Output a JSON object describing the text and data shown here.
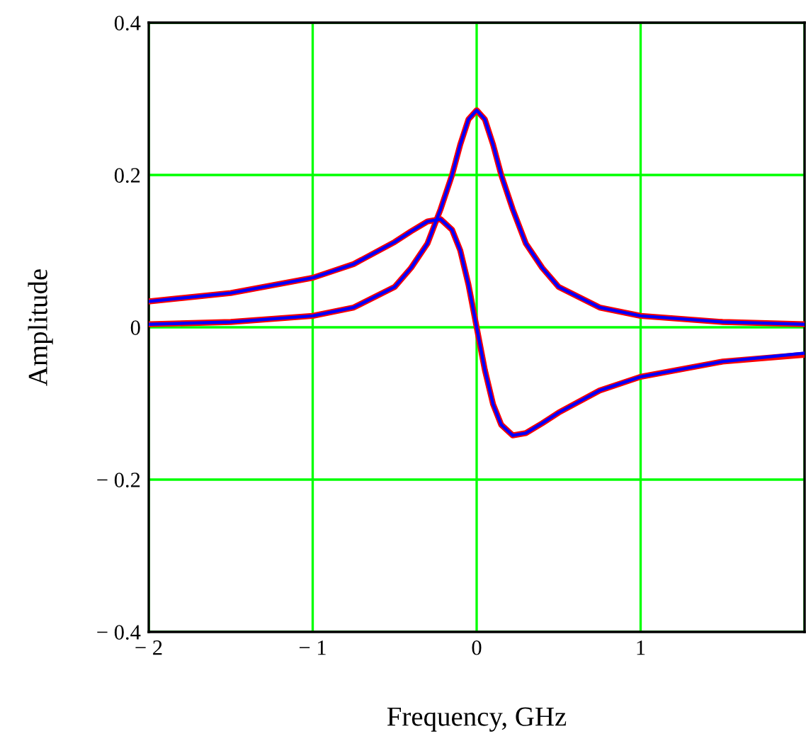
{
  "chart_data": {
    "type": "line",
    "xlabel": "Frequency, GHz",
    "ylabel": "Amplitude",
    "x": [
      -2,
      -1.5,
      -1,
      -0.75,
      -0.5,
      -0.4,
      -0.3,
      -0.22,
      -0.15,
      -0.1,
      -0.05,
      0,
      0.05,
      0.1,
      0.15,
      0.22,
      0.3,
      0.4,
      0.5,
      0.75,
      1,
      1.5,
      2
    ],
    "series": [
      {
        "color": "#ff0000",
        "values": [
          0.004,
          0.007,
          0.015,
          0.026,
          0.053,
          0.078,
          0.11,
          0.155,
          0.2,
          0.24,
          0.273,
          0.285,
          0.273,
          0.24,
          0.2,
          0.155,
          0.11,
          0.078,
          0.053,
          0.026,
          0.015,
          0.007,
          0.004
        ]
      },
      {
        "color": "#ff0000",
        "values": [
          0.034,
          0.045,
          0.065,
          0.083,
          0.112,
          0.126,
          0.139,
          0.142,
          0.128,
          0.101,
          0.056,
          0,
          -0.056,
          -0.101,
          -0.128,
          -0.142,
          -0.139,
          -0.126,
          -0.112,
          -0.083,
          -0.065,
          -0.045,
          -0.036
        ]
      },
      {
        "color": "#0000ff",
        "values": [
          0.004,
          0.007,
          0.015,
          0.026,
          0.053,
          0.078,
          0.11,
          0.155,
          0.2,
          0.24,
          0.273,
          0.285,
          0.273,
          0.24,
          0.2,
          0.155,
          0.11,
          0.078,
          0.053,
          0.026,
          0.015,
          0.007,
          0.004
        ]
      },
      {
        "color": "#0000ff",
        "values": [
          0.034,
          0.045,
          0.065,
          0.083,
          0.112,
          0.126,
          0.139,
          0.142,
          0.128,
          0.101,
          0.056,
          0,
          -0.056,
          -0.101,
          -0.128,
          -0.142,
          -0.139,
          -0.126,
          -0.112,
          -0.083,
          -0.065,
          -0.045,
          -0.034
        ]
      }
    ],
    "xlim": [
      -2,
      2
    ],
    "ylim": [
      -0.4,
      0.4
    ],
    "xticks": [
      {
        "value": -2,
        "label": "− 2"
      },
      {
        "value": -1,
        "label": "− 1"
      },
      0,
      1,
      {
        "value": 2,
        "label": null
      }
    ],
    "yticks": [
      {
        "value": -0.4,
        "label": "− 0.4"
      },
      {
        "value": -0.2,
        "label": "− 0.2"
      },
      0,
      0.2,
      0.4
    ],
    "grid": true,
    "marker": "none",
    "line_style": "solid"
  }
}
